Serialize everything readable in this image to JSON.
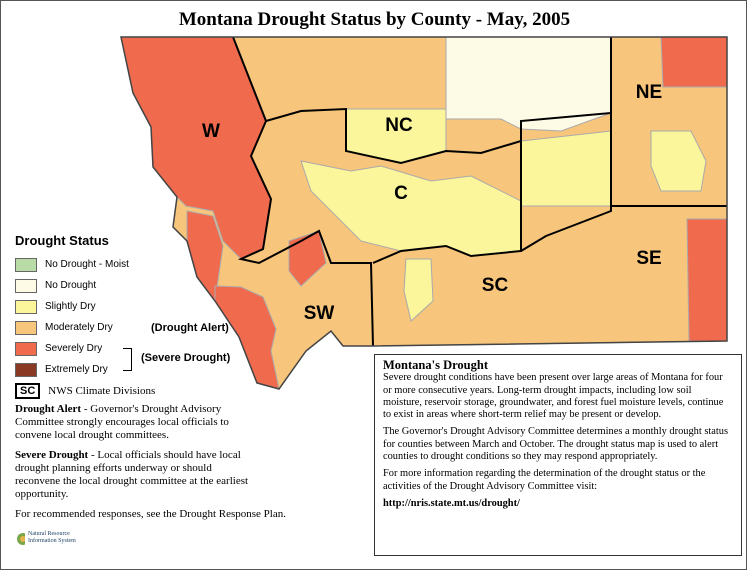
{
  "title": "Montana Drought Status by County - May, 2005",
  "regions": [
    {
      "label": "W"
    },
    {
      "label": "NC"
    },
    {
      "label": "NE"
    },
    {
      "label": "C"
    },
    {
      "label": "SW"
    },
    {
      "label": "SC"
    },
    {
      "label": "SE"
    }
  ],
  "legend": {
    "title": "Drought Status",
    "items": [
      {
        "label": "No Drought - Moist",
        "color": "#b9dca6"
      },
      {
        "label": "No Drought",
        "color": "#fdfbe6"
      },
      {
        "label": "Slightly Dry",
        "color": "#fbf59c"
      },
      {
        "label": "Moderately Dry",
        "color": "#f7c57c"
      },
      {
        "label": "Severely Dry",
        "color": "#f06a4e"
      },
      {
        "label": "Extremely Dry",
        "color": "#8a3a24"
      }
    ],
    "drought_alert": "(Drought Alert)",
    "severe_drought": "(Severe Drought)",
    "division_key": "SC",
    "division_label": "NWS Climate Divisions"
  },
  "notes": [
    {
      "term": "Drought Alert",
      "text": "- Governor's Drought Advisory Committee strongly encourages local officials to convene local drought committees."
    },
    {
      "term": "Severe Drought",
      "text": "- Local officials should have local drought planning efforts underway or should reconvene the local drought committee at the earliest opportunity."
    }
  ],
  "recommended": "For recommended responses, see the Drought Response Plan.",
  "info_box": {
    "title": "Montana's Drought",
    "paragraphs": [
      "Severe drought conditions have been present over large areas of Montana for four or more consecutive years. Long-term drought impacts, including low soil moisture, reservoir storage, groundwater, and forest fuel moisture levels, continue to exist in areas where short-term relief may be present or develop.",
      "The Governor's Drought Advisory Committee determines a monthly drought status for counties between March and October. The drought status map is used to alert counties to drought conditions so they may respond appropriately.",
      "For more information regarding the determination of the drought status or the activities of the Drought Advisory Committee visit:"
    ],
    "url": "http://nris.state.mt.us/drought/"
  },
  "logo": "Natural Resource Information System"
}
